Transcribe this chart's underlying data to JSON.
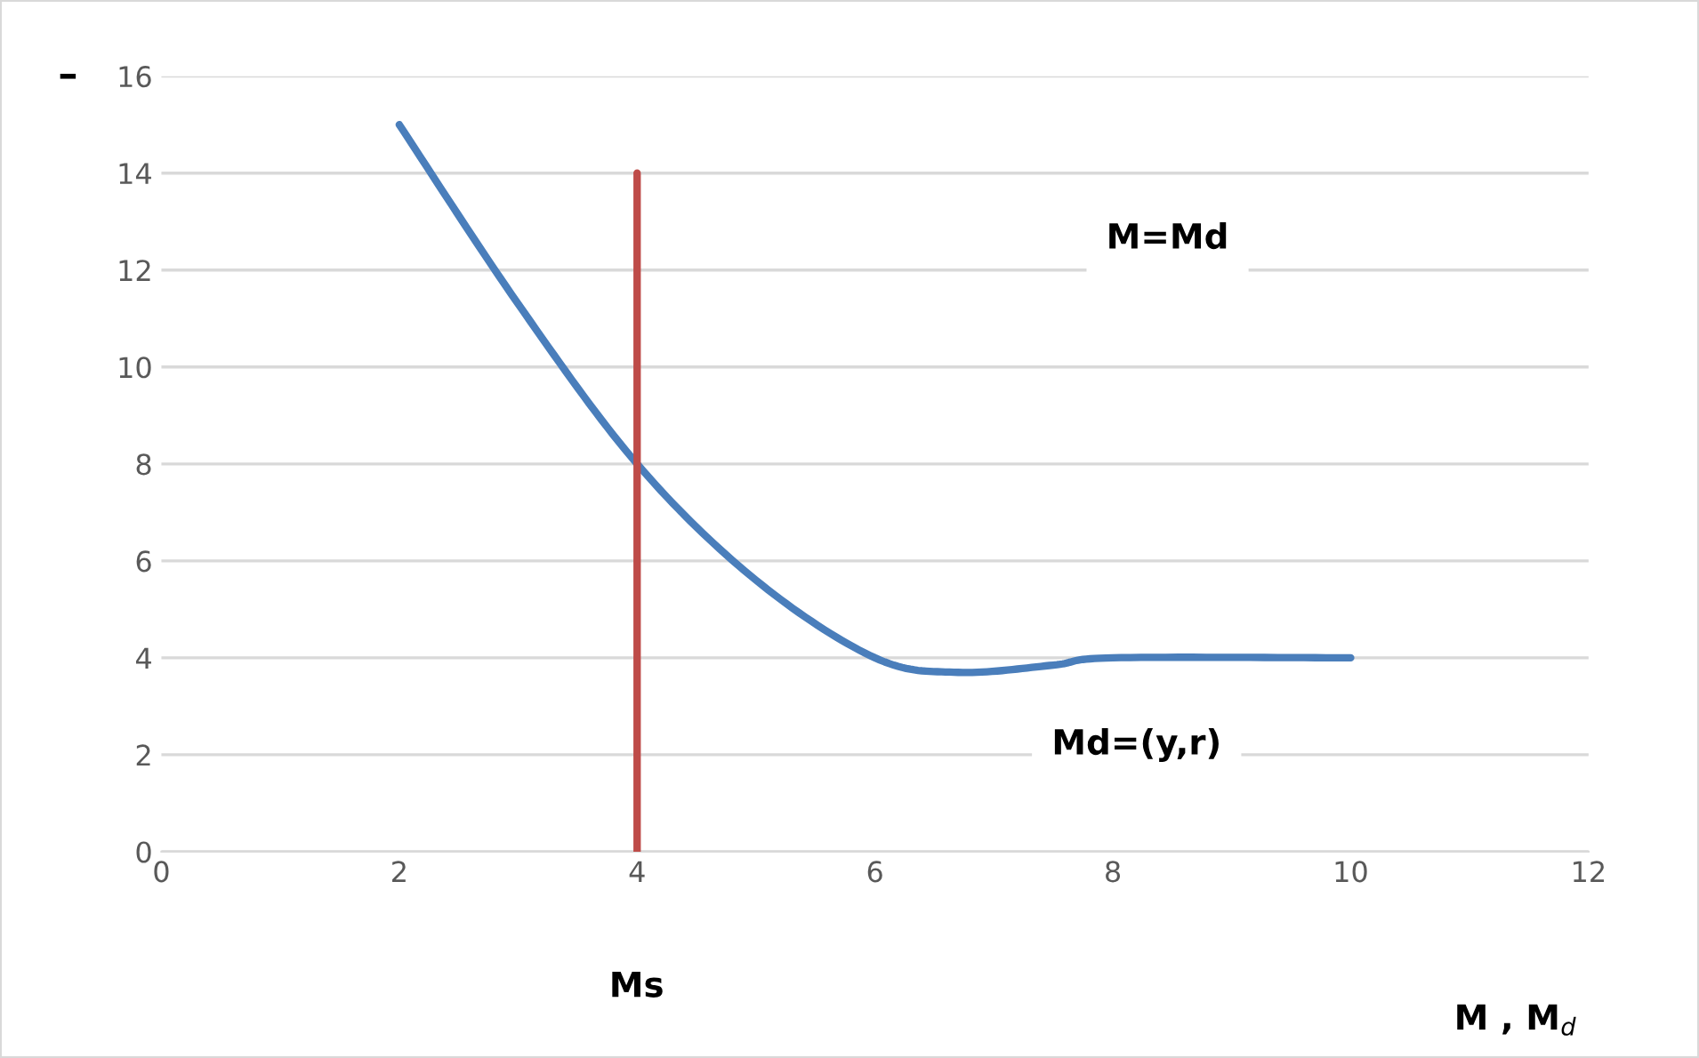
{
  "chart_data": {
    "type": "line",
    "ylabel": "–",
    "xlabel": "M , M$_{d}$",
    "xlim": [
      0,
      12
    ],
    "xticks": [
      0,
      2,
      4,
      6,
      8,
      10,
      12
    ],
    "ylim": [
      0,
      16
    ],
    "yticks": [
      0,
      2,
      4,
      6,
      8,
      10,
      12,
      14,
      16
    ],
    "grid": "y",
    "legend": false,
    "series": [
      {
        "name": "Md=(y,r)",
        "color": "#4a7ebb",
        "x": [
          2,
          3,
          4,
          5,
          6,
          6.7,
          7.5,
          8,
          10
        ],
        "values": [
          15,
          11.3,
          8,
          5.6,
          4,
          3.7,
          3.85,
          4,
          4
        ]
      },
      {
        "color": "#be4b48",
        "x": [
          4,
          4
        ],
        "values": [
          0,
          14
        ]
      }
    ],
    "annotations": [
      "M=Md",
      "Ms"
    ]
  }
}
